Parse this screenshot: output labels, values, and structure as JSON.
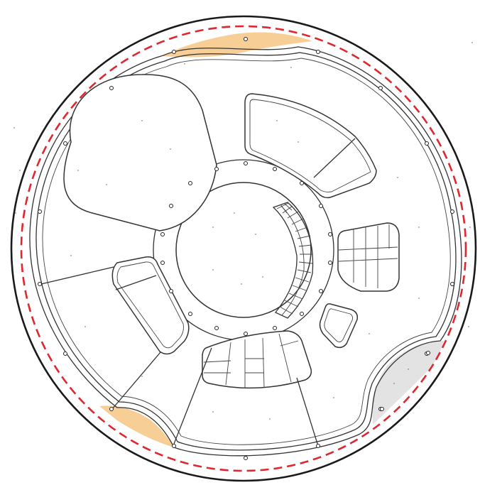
{
  "colors": {
    "background": "#ffffff",
    "wall": "#1a1a1a",
    "boundary_dashed": "#e0262f",
    "highlight_orange": "#f7cf96",
    "highlight_gray": "#e3e3e3"
  },
  "diagram": {
    "type": "circular-floor-plan",
    "labels": []
  }
}
